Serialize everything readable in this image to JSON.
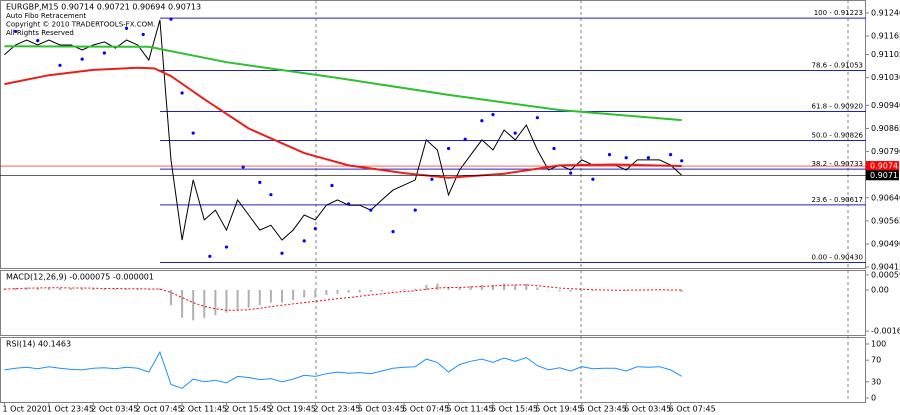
{
  "chart_data": [
    {
      "type": "line",
      "title": "EURGBP,M15  0.90714 0.90721 0.90694 0.90713",
      "annotations": [
        "Auto Fibo Retracement",
        "Copyright © 2010 TRADERTOOLS-FX.COM.",
        "All Rights Reserved"
      ],
      "xlim": [
        -0.4,
        77.6
      ],
      "ylim": [
        0.90412,
        0.91282
      ],
      "yticks": [
        {
          "value": 0.9124,
          "label": "0.91240"
        },
        0.91165,
        0.91105,
        {
          "value": 0.9103,
          "label": "0.91030"
        },
        {
          "value": 0.9094,
          "label": "0.90940"
        },
        0.90865,
        {
          "value": 0.9079,
          "label": "0.90790"
        },
        {
          "value": 0.9064,
          "label": "0.90640"
        },
        0.90565,
        {
          "value": 0.9049,
          "label": "0.90490"
        },
        0.90415
      ],
      "series": [
        {
          "style": "line",
          "color": "#000000",
          "values": [
            0.91104,
            0.91136,
            0.91152,
            0.91136,
            0.91152,
            0.91136,
            0.91136,
            0.9112,
            0.91136,
            0.91146,
            0.91126,
            0.91152,
            0.91136,
            0.91087,
            0.91217,
            0.90763,
            0.90503,
            0.90698,
            0.90568,
            0.906,
            0.90535,
            0.90633,
            0.90584,
            0.90535,
            0.90551,
            0.90503,
            0.90535,
            0.90584,
            0.90568,
            0.90616,
            0.90633,
            0.90616,
            0.90616,
            0.906,
            0.90633,
            0.90665,
            0.90681,
            0.90698,
            0.90828,
            0.90795,
            0.90649,
            0.9073,
            0.90779,
            0.90828,
            0.90795,
            0.9086,
            0.90828,
            0.90876,
            0.90795,
            0.9073,
            0.90746,
            0.9073,
            0.90763,
            0.90746,
            0.90746,
            0.90746,
            0.9073,
            0.90763,
            0.90763,
            0.90763,
            0.90746,
            0.90713
          ]
        },
        {
          "style": "line",
          "color": "#e8201a",
          "x": [
            0,
            4,
            8,
            12,
            13.5,
            15,
            18,
            22,
            27,
            31,
            36,
            40,
            45,
            50,
            55,
            61
          ],
          "values": [
            0.91009,
            0.91038,
            0.91055,
            0.91062,
            0.9106,
            0.91035,
            0.9096,
            0.90865,
            0.90785,
            0.90745,
            0.9072,
            0.90705,
            0.90718,
            0.90745,
            0.90748,
            0.90743
          ]
        },
        {
          "style": "line",
          "color": "#2ec02e",
          "x": [
            0,
            13,
            20,
            30,
            40,
            50,
            61
          ],
          "values": [
            0.91132,
            0.9113,
            0.9108,
            0.91029,
            0.90974,
            0.90925,
            0.90892
          ]
        },
        {
          "style": "dots",
          "color": "#0000ff",
          "x": [
            1,
            3,
            5,
            7,
            9,
            11,
            12.5,
            15,
            16,
            17,
            18.5,
            20,
            21.5,
            23,
            24,
            25,
            27,
            28,
            29.5,
            31,
            33,
            35,
            37,
            38.5,
            40,
            41.5,
            43,
            44,
            46,
            48,
            49.5,
            51,
            53,
            54.5,
            56,
            58,
            60,
            61
          ],
          "values": [
            0.9118,
            0.9115,
            0.9107,
            0.9109,
            0.9111,
            0.9119,
            0.9117,
            0.9122,
            0.9098,
            0.9085,
            0.9045,
            0.9048,
            0.9074,
            0.9069,
            0.9065,
            0.9046,
            0.905,
            0.9054,
            0.9068,
            0.9062,
            0.906,
            0.9053,
            0.906,
            0.907,
            0.908,
            0.9083,
            0.9089,
            0.9091,
            0.9085,
            0.909,
            0.908,
            0.9072,
            0.907,
            0.9078,
            0.9077,
            0.9077,
            0.9078,
            0.9076
          ]
        }
      ],
      "fibo_levels": [
        {
          "value": 0.91223,
          "label": "100 - 0.91223"
        },
        {
          "value": 0.91053,
          "label": "78.6 - 0.91053"
        },
        {
          "value": 0.9092,
          "label": "61.8 - 0.90920"
        },
        {
          "value": 0.90826,
          "label": "50.0 - 0.90826"
        },
        {
          "value": 0.90733,
          "label": "38.2 - 0.90733"
        },
        {
          "value": 0.90617,
          "label": "23.6 - 0.90617"
        },
        {
          "value": 0.9043,
          "label": "0.00 - 0.90430"
        }
      ],
      "price_tags": [
        {
          "value": 0.90743,
          "color": "#ff0000"
        },
        {
          "value": 0.90713,
          "color": "#000000"
        }
      ]
    },
    {
      "type": "bar",
      "title": "MACD(12,26,9) -0.000075 -0.000001",
      "xlim": [
        -0.4,
        77.6
      ],
      "ylim": [
        -0.00178,
        0.00079
      ],
      "yticks": [
        0.000596,
        {
          "value": 0,
          "label": "0.00"
        },
        -0.001627
      ],
      "series": [
        {
          "style": "bars",
          "color": "#b0b0b0",
          "values": [
            5e-05,
            8e-05,
            0.0001,
            0.0001,
            9e-05,
            8e-05,
            7e-05,
            6e-05,
            5e-05,
            5e-05,
            4e-05,
            5e-05,
            4e-05,
            2e-05,
            6e-05,
            -0.0006,
            -0.0011,
            -0.0012,
            -0.0011,
            -0.001,
            -0.0009,
            -0.0008,
            -0.0007,
            -0.0006,
            -0.0005,
            -0.0005,
            -0.0004,
            -0.0003,
            -0.0003,
            -0.0002,
            -0.00015,
            -0.0001,
            -0.0001,
            -8e-05,
            -5e-05,
            0,
            3e-05,
            5e-05,
            0.0002,
            0.00025,
            0.0001,
            0.0001,
            0.00015,
            0.0002,
            0.0002,
            0.00025,
            0.0002,
            0.00025,
            0.0001,
            0,
            -5e-05,
            -6e-05,
            -3e-05,
            -3e-05,
            -2e-05,
            -2e-05,
            -1e-05,
            1e-05,
            1e-05,
            1e-05,
            -2e-05,
            -7.5e-05
          ]
        },
        {
          "style": "dotted",
          "color": "#ff0000",
          "values": [
            4e-05,
            5e-05,
            7e-05,
            8e-05,
            9e-05,
            9e-05,
            8e-05,
            8e-05,
            7e-05,
            6e-05,
            6e-05,
            5e-05,
            5e-05,
            4e-05,
            4e-05,
            -0.0001,
            -0.0003,
            -0.0005,
            -0.00065,
            -0.00075,
            -0.0008,
            -0.0008,
            -0.00078,
            -0.00072,
            -0.00066,
            -0.0006,
            -0.00055,
            -0.0005,
            -0.00045,
            -0.0004,
            -0.00034,
            -0.0003,
            -0.00025,
            -0.0002,
            -0.00015,
            -0.0001,
            -6e-05,
            -3e-05,
            3e-05,
            8e-05,
            0.0001,
            0.0001,
            0.00012,
            0.00014,
            0.00016,
            0.00018,
            0.0002,
            0.0002,
            0.00017,
            0.00012,
            8e-05,
            5e-05,
            3e-05,
            1e-05,
            0,
            -1e-05,
            -1e-05,
            0,
            0,
            1e-05,
            0,
            -1e-06
          ]
        }
      ]
    },
    {
      "type": "line",
      "title": "RSI(14) 40.1463",
      "xlim": [
        -0.4,
        77.6
      ],
      "ylim": [
        0,
        100
      ],
      "yticks": [
        100,
        70,
        30,
        0
      ],
      "series": [
        {
          "style": "line",
          "color": "#1e90ff",
          "values": [
            52,
            55,
            57,
            54,
            58,
            55,
            53,
            52,
            55,
            56,
            54,
            57,
            55,
            48,
            85,
            25,
            18,
            35,
            30,
            33,
            28,
            40,
            38,
            34,
            36,
            30,
            35,
            42,
            40,
            45,
            48,
            46,
            47,
            45,
            50,
            55,
            57,
            58,
            72,
            66,
            48,
            62,
            68,
            72,
            66,
            74,
            68,
            75,
            60,
            52,
            56,
            50,
            58,
            54,
            55,
            55,
            50,
            58,
            57,
            58,
            52,
            40.1463
          ]
        }
      ],
      "xticks": [
        {
          "value": 0,
          "label": "1 Oct 2020"
        },
        {
          "value": 4,
          "label": "1 Oct 23:45"
        },
        {
          "value": 8,
          "label": "2 Oct 03:45"
        },
        {
          "value": 12,
          "label": "2 Oct 07:45"
        },
        {
          "value": 16,
          "label": "2 Oct 11:45"
        },
        {
          "value": 20,
          "label": "2 Oct 15:45"
        },
        {
          "value": 24,
          "label": "2 Oct 19:45"
        },
        {
          "value": 28,
          "label": "2 Oct 23:45"
        },
        {
          "value": 32,
          "label": "5 Oct 03:45"
        },
        {
          "value": 36,
          "label": "5 Oct 07:45"
        },
        {
          "value": 40,
          "label": "5 Oct 11:45"
        },
        {
          "value": 44,
          "label": "5 Oct 15:45"
        },
        {
          "value": 48,
          "label": "5 Oct 19:45"
        },
        {
          "value": 52,
          "label": "5 Oct 23:45"
        },
        {
          "value": 56,
          "label": "6 Oct 03:45"
        },
        {
          "value": 60,
          "label": "6 Oct 07:45"
        }
      ]
    }
  ]
}
